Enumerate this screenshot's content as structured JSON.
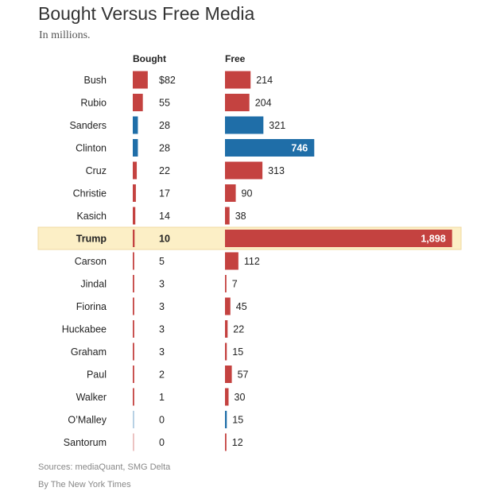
{
  "chart_data": {
    "type": "bar",
    "title": "Bought Versus Free Media",
    "subtitle": "In millions.",
    "series": [
      {
        "name": "Bought",
        "value_labels": [
          "$82",
          "55",
          "28",
          "28",
          "22",
          "17",
          "14",
          "10",
          "5",
          "3",
          "3",
          "3",
          "3",
          "2",
          "1",
          "0",
          "0"
        ],
        "values": [
          82,
          55,
          28,
          28,
          22,
          17,
          14,
          10,
          5,
          3,
          3,
          3,
          3,
          2,
          1,
          0,
          0
        ]
      },
      {
        "name": "Free",
        "value_labels": [
          "214",
          "204",
          "321",
          "746",
          "313",
          "90",
          "38",
          "1,898",
          "112",
          "7",
          "45",
          "22",
          "15",
          "57",
          "30",
          "15",
          "12"
        ],
        "values": [
          214,
          204,
          321,
          746,
          313,
          90,
          38,
          1898,
          112,
          7,
          45,
          22,
          15,
          57,
          30,
          15,
          12
        ]
      }
    ],
    "categories": [
      "Bush",
      "Rubio",
      "Sanders",
      "Clinton",
      "Cruz",
      "Christie",
      "Kasich",
      "Trump",
      "Carson",
      "Jindal",
      "Fiorina",
      "Huckabee",
      "Graham",
      "Paul",
      "Walker",
      "O’Malley",
      "Santorum"
    ],
    "party": [
      "R",
      "R",
      "D",
      "D",
      "R",
      "R",
      "R",
      "R",
      "R",
      "R",
      "R",
      "R",
      "R",
      "R",
      "R",
      "D",
      "R"
    ],
    "highlight": "Trump",
    "colors": {
      "R": "#c44240",
      "D": "#1f6ea8",
      "highlight_bg": "#fcefc6",
      "highlight_border": "#efd9a0"
    }
  },
  "footer": {
    "sources": "Sources: mediaQuant, SMG Delta",
    "credit": "By The New York Times"
  }
}
